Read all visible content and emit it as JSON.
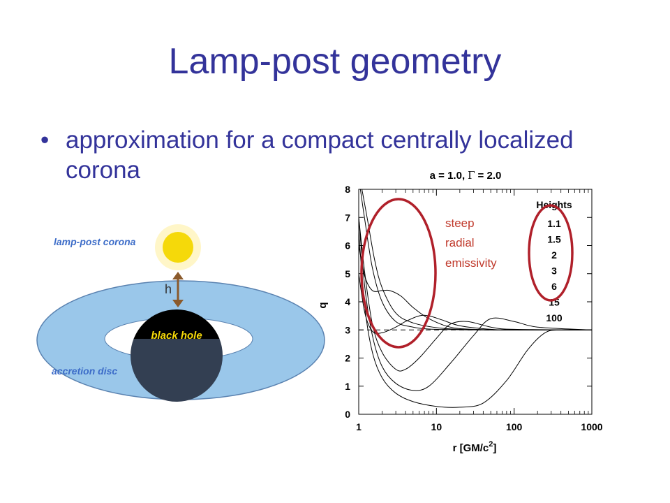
{
  "slide": {
    "title": "Lamp-post geometry",
    "bullet_symbol": "•",
    "bullet_text": "approximation for a compact centrally localized corona"
  },
  "diagram": {
    "label_corona": "lamp-post corona",
    "label_h": "h",
    "label_black_hole": "black hole",
    "label_disc": "accretion disc",
    "colors": {
      "disc": "#9ac7ea",
      "disc_edge": "#5a82b0",
      "corona": "#f5d90a",
      "arrow": "#8b5a2b",
      "text_blue": "#3c6cc8"
    }
  },
  "annotation": {
    "lines": [
      "steep",
      "radial",
      "emissivity"
    ],
    "color": "#c0392b"
  },
  "chart_data": {
    "type": "line",
    "title_a": "a = 1.0,",
    "title_gamma_symbol": "Γ",
    "title_gamma_value": "= 2.0",
    "xlabel": "r [GM/c",
    "xlabel_sup": "2",
    "xlabel_end": "]",
    "ylabel": "q",
    "xscale": "log",
    "xlim": [
      1,
      1000
    ],
    "ylim": [
      0,
      8
    ],
    "x_ticks": [
      "1",
      "10",
      "100",
      "1000"
    ],
    "y_ticks": [
      "0",
      "1",
      "2",
      "3",
      "4",
      "5",
      "6",
      "7",
      "8"
    ],
    "reference_line_y": 3,
    "legend_title": "Heights",
    "series": [
      {
        "name": "1.1",
        "x": [
          1.05,
          1.2,
          1.5,
          2,
          3,
          5,
          8,
          15,
          30,
          100,
          1000
        ],
        "y": [
          8,
          6.9,
          5.2,
          4.0,
          3.3,
          3.1,
          3.03,
          3.01,
          3.0,
          3.0,
          3.0
        ]
      },
      {
        "name": "1.5",
        "x": [
          1.1,
          1.3,
          1.6,
          2,
          3,
          5,
          10,
          20,
          50,
          100,
          1000
        ],
        "y": [
          8,
          6.9,
          5.5,
          4.5,
          3.6,
          3.25,
          3.08,
          3.02,
          3.0,
          3.0,
          3.0
        ]
      },
      {
        "name": "2",
        "x": [
          1,
          1.2,
          1.5,
          2,
          2.5,
          3.5,
          5,
          8,
          15,
          30,
          100,
          1000
        ],
        "y": [
          6.0,
          4.9,
          4.4,
          4.4,
          4.4,
          4.2,
          3.8,
          3.4,
          3.1,
          3.02,
          3.0,
          3.0
        ]
      },
      {
        "name": "3",
        "x": [
          1,
          1.2,
          1.5,
          2,
          3,
          4,
          6,
          8,
          12,
          20,
          50,
          100,
          1000
        ],
        "y": [
          5.0,
          3.6,
          2.95,
          2.9,
          3.1,
          3.3,
          3.5,
          3.5,
          3.35,
          3.15,
          3.02,
          3.0,
          3.0
        ]
      },
      {
        "name": "6",
        "x": [
          1,
          1.2,
          1.5,
          2,
          3,
          4,
          6,
          10,
          15,
          25,
          50,
          100,
          1000
        ],
        "y": [
          7.0,
          5.0,
          3.2,
          2.2,
          1.6,
          1.6,
          2.0,
          2.7,
          3.2,
          3.3,
          3.1,
          3.02,
          3.0
        ]
      },
      {
        "name": "15",
        "x": [
          1,
          1.2,
          1.5,
          2,
          3,
          5,
          8,
          15,
          30,
          50,
          100,
          200,
          1000
        ],
        "y": [
          7.0,
          4.5,
          2.8,
          1.7,
          1.1,
          0.85,
          1.0,
          1.8,
          2.8,
          3.4,
          3.3,
          3.1,
          3.0
        ]
      },
      {
        "name": "100",
        "x": [
          1,
          1.2,
          1.5,
          2,
          3,
          5,
          10,
          20,
          40,
          80,
          150,
          250,
          400,
          1000
        ],
        "y": [
          6.5,
          3.8,
          2.2,
          1.3,
          0.75,
          0.45,
          0.28,
          0.25,
          0.4,
          1.2,
          2.3,
          2.9,
          3.0,
          3.0
        ]
      }
    ]
  }
}
